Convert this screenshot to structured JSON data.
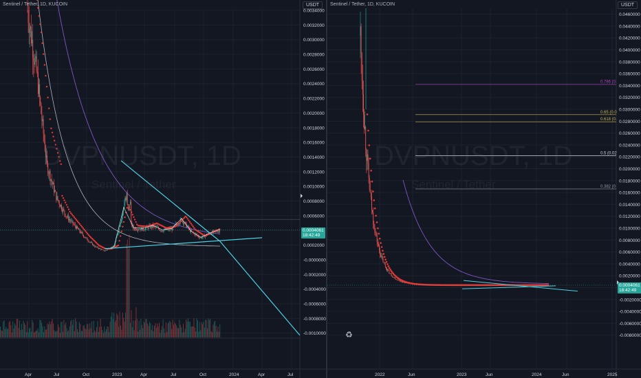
{
  "left_panel": {
    "symbol_line": "Sentinel / Tether, 1D, KUCOIN",
    "currency": "USDT",
    "watermark_symbol": "DVPNUSDT, 1D",
    "watermark_name": "Sentinel / Tether",
    "last_price": "0.0004061",
    "countdown": "18:42:49"
  },
  "right_panel": {
    "symbol_line": "Sentinel / Tether, 1D, KUCOIN",
    "currency": "USDT",
    "watermark_symbol": "DVPNUSDT, 1D",
    "watermark_name": "Sentinel / Tether",
    "last_price": "0.0004061",
    "countdown": "18:42:49"
  },
  "colors": {
    "bg": "#131722",
    "candle_up": "#26a69a",
    "candle_down": "#ef5350",
    "ma_red": "#e53935",
    "ma_purple": "#7e57c2",
    "ma_white": "#b2b5be",
    "trend_line": "#4dd0e1",
    "fib_gray": "#9598a1",
    "fib_gold": "#c9b458",
    "fib_purple": "#ab47bc",
    "fib_white": "#d1d4dc"
  },
  "chart_data": [
    {
      "type": "candlestick",
      "title": "Sentinel / Tether, 1D, KUCOIN",
      "currency": "USDT",
      "last_price": 0.0004061,
      "yticks": [
        "0.0034000",
        "0.0032000",
        "0.0030000",
        "0.0028000",
        "0.0026000",
        "0.0024000",
        "0.0022000",
        "0.0020000",
        "0.0018000",
        "0.0016000",
        "0.0014000",
        "0.0012000",
        "0.0010000",
        "0.0008000",
        "0.0006000",
        "0.0004000",
        "0.0002000",
        "-0.0000000",
        "-0.0002000",
        "-0.0004000",
        "-0.0006000",
        "-0.0008000",
        "-0.0010000"
      ],
      "xticks": [
        "Apr",
        "Jul",
        "Oct",
        "2023",
        "Apr",
        "Jul",
        "Oct",
        "2024",
        "Apr",
        "Jul"
      ],
      "ylim": [
        -0.00105,
        0.0034
      ],
      "series": [
        {
          "name": "price",
          "points": [
            [
              "Apr 2022",
              0.0034
            ],
            [
              "May 2022",
              0.0025
            ],
            [
              "Jun 2022",
              0.0013
            ],
            [
              "Jul 2022",
              0.00085
            ],
            [
              "Aug 2022",
              0.0006
            ],
            [
              "Sep 2022",
              0.00045
            ],
            [
              "Oct 2022",
              0.0003
            ],
            [
              "Nov 2022",
              0.00018
            ],
            [
              "Dec 2022",
              0.00012
            ],
            [
              "Jan 2023",
              0.00018
            ],
            [
              "Feb 2023",
              0.0007
            ],
            [
              "Mar 2023",
              0.00043
            ],
            [
              "Apr 2023",
              0.00042
            ],
            [
              "May 2023",
              0.00046
            ],
            [
              "Jun 2023",
              0.0004
            ],
            [
              "Jul 2023",
              0.00042
            ],
            [
              "Aug 2023",
              0.00055
            ],
            [
              "Sep 2023",
              0.00038
            ],
            [
              "Oct 2023",
              0.0003
            ],
            [
              "Nov 2023",
              0.00036
            ],
            [
              "Dec 2023",
              0.0004061
            ]
          ]
        }
      ],
      "trend_lines": [
        {
          "from": [
            "Jan 2023",
            0.00135
          ],
          "to": [
            "Dec 2023",
            0.00025
          ]
        },
        {
          "from": [
            "Dec 2023",
            0.00025
          ],
          "to": [
            "Jul 2024",
            -0.00103
          ]
        },
        {
          "from": [
            "Dec 2022",
            0.00015
          ],
          "to": [
            "Mar 2024",
            0.0003
          ]
        }
      ]
    },
    {
      "type": "candlestick",
      "title": "Sentinel / Tether, 1D, KUCOIN",
      "currency": "USDT",
      "last_price": 0.0004061,
      "yticks": [
        "0.0460000",
        "0.0440000",
        "0.0420000",
        "0.0400000",
        "0.0380000",
        "0.0360000",
        "0.0340000",
        "0.0320000",
        "0.0300000",
        "0.0280000",
        "0.0260000",
        "0.0240000",
        "0.0220000",
        "0.0200000",
        "0.0180000",
        "0.0160000",
        "0.0140000",
        "0.0120000",
        "0.0100000",
        "0.0080000",
        "0.0060000",
        "0.0040000",
        "0.0020000",
        "-0.0000000",
        "-0.0020000",
        "-0.0040000",
        "-0.0060000",
        "-0.0080000"
      ],
      "xticks": [
        "2022",
        "Jun",
        "2023",
        "Jun",
        "2024",
        "Jun",
        "2025"
      ],
      "ylim": [
        -0.0085,
        0.047
      ],
      "fib_levels": [
        {
          "label": "0.786 (0.",
          "value": 0.0342
        },
        {
          "label": "0.65 (0.0",
          "value": 0.0291
        },
        {
          "label": "0.618 (0.",
          "value": 0.0279
        },
        {
          "label": "0.5 (0.02",
          "value": 0.0222
        },
        {
          "label": "0.382 (0",
          "value": 0.0166
        }
      ]
    }
  ]
}
